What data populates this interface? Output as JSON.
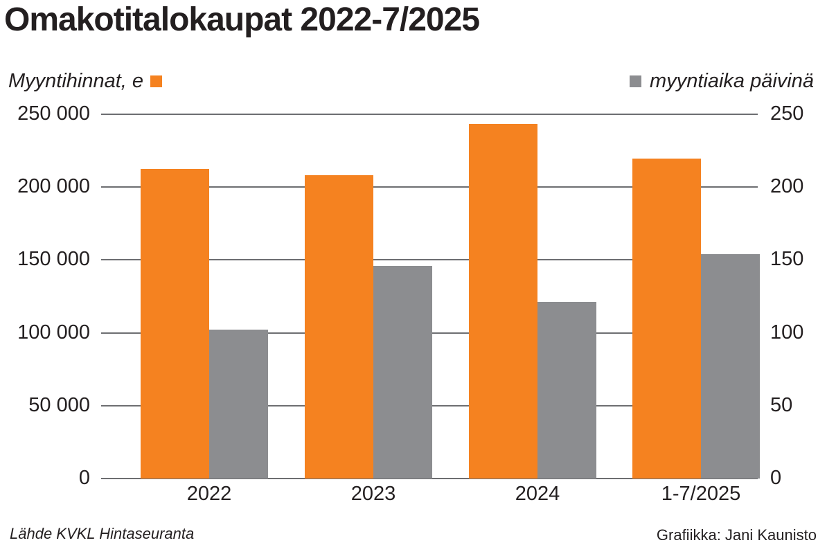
{
  "header": {
    "title": "Omakotitalokaupat 2022-7/2025"
  },
  "legend": {
    "left_label": "Myyntihinnat, e",
    "right_label": "myyntiaika päivinä"
  },
  "colors": {
    "price": "#f58220",
    "days": "#8c8d90",
    "grid": "#6d6e71",
    "text": "#231f20"
  },
  "axes": {
    "left_ticks": [
      "250 000",
      "200 000",
      "150 000",
      "100 000",
      "50 000",
      "0"
    ],
    "right_ticks": [
      "250",
      "200",
      "150",
      "100",
      "50",
      "0"
    ]
  },
  "footer": {
    "source": "Lähde KVKL Hintaseuranta",
    "credit": "Grafiikka: Jani Kaunisto"
  },
  "chart_data": {
    "type": "bar",
    "title": "Omakotitalokaupat 2022-7/2025",
    "categories": [
      "2022",
      "2023",
      "2024",
      "1-7/2025"
    ],
    "series": [
      {
        "name": "Myyntihinnat, e",
        "axis": "left",
        "color": "#f58220",
        "values": [
          212500,
          208000,
          243500,
          219500
        ]
      },
      {
        "name": "myyntiaika päivinä",
        "axis": "right",
        "color": "#8c8d90",
        "values": [
          102,
          146,
          121,
          154
        ]
      }
    ],
    "xlabel": "",
    "ylabel_left": "Myyntihinnat, e",
    "ylabel_right": "myyntiaika päivinä",
    "ylim_left": [
      0,
      250000
    ],
    "ylim_right": [
      0,
      250
    ],
    "yticks_left": [
      0,
      50000,
      100000,
      150000,
      200000,
      250000
    ],
    "yticks_right": [
      0,
      50,
      100,
      150,
      200,
      250
    ],
    "grid": true,
    "legend_position": "top",
    "source": "Lähde KVKL Hintaseuranta"
  }
}
